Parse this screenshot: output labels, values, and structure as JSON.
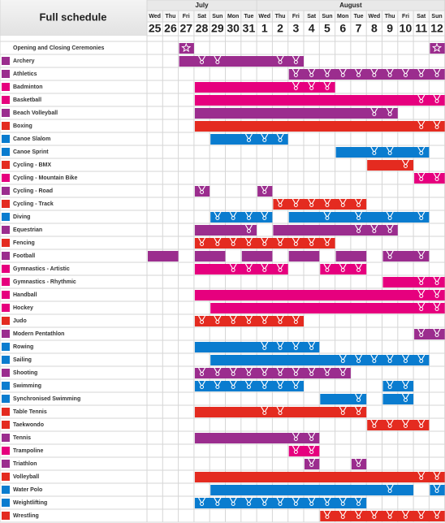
{
  "title": "Full schedule",
  "months": [
    "July",
    "August"
  ],
  "days": [
    {
      "weekday": "Wed",
      "date": "25"
    },
    {
      "weekday": "Thu",
      "date": "26"
    },
    {
      "weekday": "Fri",
      "date": "27"
    },
    {
      "weekday": "Sat",
      "date": "28"
    },
    {
      "weekday": "Sun",
      "date": "29"
    },
    {
      "weekday": "Mon",
      "date": "30"
    },
    {
      "weekday": "Tue",
      "date": "31"
    },
    {
      "weekday": "Wed",
      "date": "1"
    },
    {
      "weekday": "Thu",
      "date": "2"
    },
    {
      "weekday": "Fri",
      "date": "3"
    },
    {
      "weekday": "Sat",
      "date": "4"
    },
    {
      "weekday": "Sun",
      "date": "5"
    },
    {
      "weekday": "Mon",
      "date": "6"
    },
    {
      "weekday": "Tue",
      "date": "7"
    },
    {
      "weekday": "Wed",
      "date": "8"
    },
    {
      "weekday": "Thu",
      "date": "9"
    },
    {
      "weekday": "Fri",
      "date": "10"
    },
    {
      "weekday": "Sat",
      "date": "11"
    },
    {
      "weekday": "Sun",
      "date": "12"
    }
  ],
  "rows": [
    {
      "name": "Opening and Closing Ceremonies",
      "color": "#9b2d8e",
      "days": "..*...............*"
    },
    {
      "name": "Archery",
      "color": "#9b2d8e",
      "days": "..-MM---MM........."
    },
    {
      "name": "Athletics",
      "color": "#9b2d8e",
      "days": ".........MMMMMMMMMM"
    },
    {
      "name": "Badminton",
      "color": "#e6007e",
      "days": "...------MMM......."
    },
    {
      "name": "Basketball",
      "color": "#e6007e",
      "days": "...--------------MM"
    },
    {
      "name": "Beach Volleyball",
      "color": "#9b2d8e",
      "days": "...-----------MM..."
    },
    {
      "name": "Boxing",
      "color": "#e42b20",
      "days": "...--------------MM"
    },
    {
      "name": "Canoe Slalom",
      "color": "#0a7ccf",
      "days": "....--MMM.........."
    },
    {
      "name": "Canoe Sprint",
      "color": "#0a7ccf",
      "days": "............--MM-M."
    },
    {
      "name": "Cycling - BMX",
      "color": "#e42b20",
      "days": "..............--M.."
    },
    {
      "name": "Cycling - Mountain Bike",
      "color": "#e6007e",
      "days": ".................MM"
    },
    {
      "name": "Cycling - Road",
      "color": "#9b2d8e",
      "days": "...M...M..........."
    },
    {
      "name": "Cycling - Track",
      "color": "#e42b20",
      "days": "........MMMMMM....."
    },
    {
      "name": "Diving",
      "color": "#0a7ccf",
      "days": "....MMMM.--M-M-M-M."
    },
    {
      "name": "Equestrian",
      "color": "#9b2d8e",
      "days": "...---M.-----MMM..."
    },
    {
      "name": "Fencing",
      "color": "#e42b20",
      "days": "...MMMMMMMMM......."
    },
    {
      "name": "Football",
      "color": "#9b2d8e",
      "days": "--.--.--.--.--.M-M."
    },
    {
      "name": "Gymnastics - Artistic",
      "color": "#e6007e",
      "days": "...--MMMM..MMM....."
    },
    {
      "name": "Gymnastics - Rhythmic",
      "color": "#e6007e",
      "days": "...............--MM"
    },
    {
      "name": "Handball",
      "color": "#e6007e",
      "days": "...--------------MM"
    },
    {
      "name": "Hockey",
      "color": "#e6007e",
      "days": "....-------------MM"
    },
    {
      "name": "Judo",
      "color": "#e42b20",
      "days": "...MMMMMMM........."
    },
    {
      "name": "Modern Pentathlon",
      "color": "#9b2d8e",
      "days": ".................MM"
    },
    {
      "name": "Rowing",
      "color": "#0a7ccf",
      "days": "...----MMMM........"
    },
    {
      "name": "Sailing",
      "color": "#0a7ccf",
      "days": "....--------MMMMMM."
    },
    {
      "name": "Shooting",
      "color": "#9b2d8e",
      "days": "...MMMMMMMMMM......"
    },
    {
      "name": "Swimming",
      "color": "#0a7ccf",
      "days": "...MMMMMMM.....MM.."
    },
    {
      "name": "Synchronised Swimming",
      "color": "#0a7ccf",
      "days": "...........--M.-M.."
    },
    {
      "name": "Table Tennis",
      "color": "#e42b20",
      "days": "...----MM---MM....."
    },
    {
      "name": "Taekwondo",
      "color": "#e42b20",
      "days": "..............MMMM."
    },
    {
      "name": "Tennis",
      "color": "#9b2d8e",
      "days": "...------MM........"
    },
    {
      "name": "Trampoline",
      "color": "#e6007e",
      "days": ".........MM........"
    },
    {
      "name": "Triathlon",
      "color": "#9b2d8e",
      "days": "..........M..M....."
    },
    {
      "name": "Volleyball",
      "color": "#e42b20",
      "days": "...--------------MM"
    },
    {
      "name": "Water Polo",
      "color": "#0a7ccf",
      "days": "....-----------M-.M"
    },
    {
      "name": "Weightlifting",
      "color": "#0a7ccf",
      "days": "...MMMMMMMMMMM....."
    },
    {
      "name": "Wrestling",
      "color": "#e42b20",
      "days": "...........MMMMMMMM"
    }
  ]
}
